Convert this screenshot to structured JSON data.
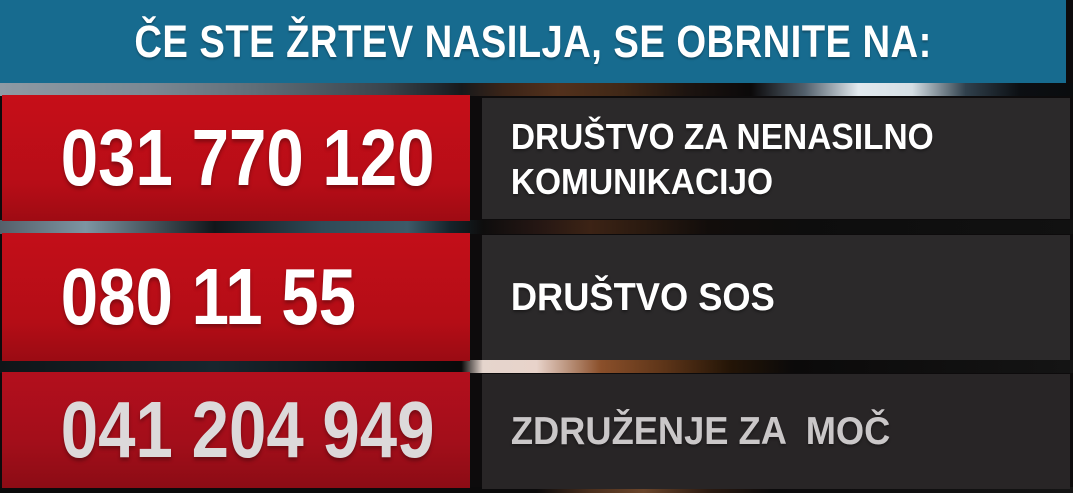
{
  "banner": {
    "title": "ČE STE ŽRTEV NASILJA, SE OBRNITE NA:"
  },
  "rows": [
    {
      "phone": "031 770 120",
      "organization": "DRUŠTVO ZA NENASILNO\nKOMUNIKACIJO"
    },
    {
      "phone": "080 11 55",
      "organization": "DRUŠTVO SOS"
    },
    {
      "phone": "041 204 949",
      "organization": "ZDRUŽENJE ZA  MOČ"
    }
  ],
  "colors": {
    "banner_teal": "#176b8f",
    "phone_red": "#c60e18",
    "phone_red_dark_row": "#b30f1d",
    "org_panel_dark": "#2b292a",
    "text_white": "#ffffff",
    "text_faded": "#cac7c8"
  }
}
